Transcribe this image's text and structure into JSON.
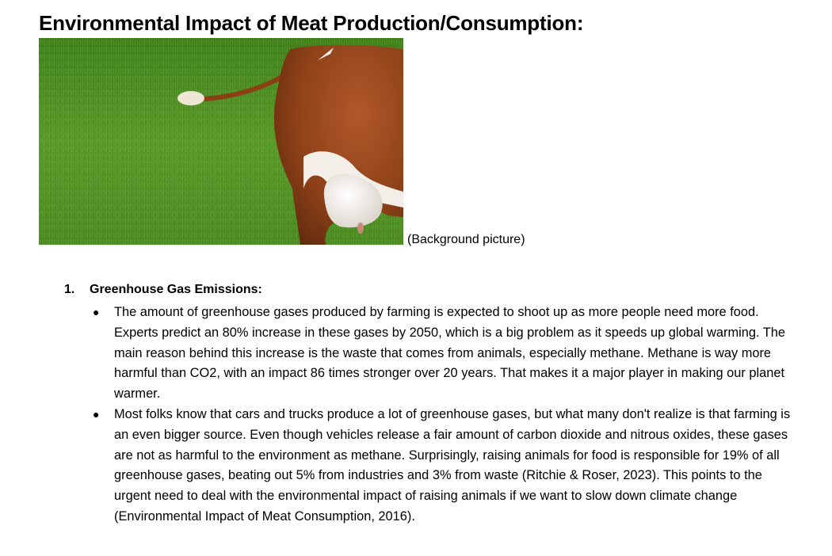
{
  "document": {
    "title": "Environmental Impact of Meat Production/Consumption:",
    "image_caption": "(Background picture)",
    "image_subject": "cow-in-grass-photo",
    "section": {
      "number": "1.",
      "heading": "Greenhouse Gas Emissions:",
      "bullets": [
        "The amount of greenhouse gases produced by farming is expected to shoot up as more people need more food. Experts predict an 80% increase in these gases by 2050, which is a big problem as it speeds up global warming. The main reason behind this increase is the waste that comes from animals, especially methane. Methane is way more harmful than CO2, with an impact 86 times stronger over 20 years. That makes it a major player in making our planet warmer.",
        "Most folks know that cars and trucks produce a lot of greenhouse gases, but what many don't realize is that farming is an even bigger source. Even though vehicles release a fair amount of carbon dioxide and nitrous oxides, these gases are not as harmful to the environment as methane. Surprisingly, raising animals for food is responsible for 19% of all greenhouse gases, beating out 5% from industries and 3% from waste (Ritchie & Roser, 2023). This points to the urgent need to deal with the environmental impact of raising animals if we want to slow down climate change (Environmental Impact of Meat Consumption, 2016)."
      ]
    }
  },
  "colors": {
    "text": "#000000",
    "grass": "#4f8f24",
    "cow_brown": "#9a4a1c",
    "cow_white": "#f3efe8"
  }
}
